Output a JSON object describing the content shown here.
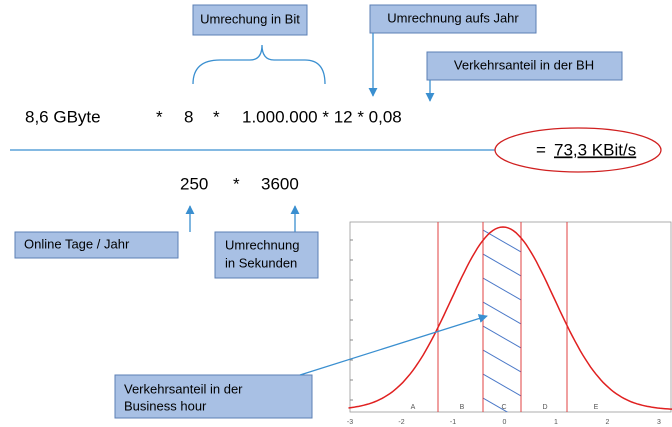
{
  "annotations": {
    "bit": "Umrechung in Bit",
    "year": "Umrechnung aufs Jahr",
    "bh": "Verkehrsanteil in der BH",
    "days": "Online Tage / Jahr",
    "seconds": [
      "Umrechnung",
      "in Sekunden"
    ],
    "business": [
      "Verkehrsanteil in der",
      "Business hour"
    ]
  },
  "formula": {
    "numerator": [
      "8,6 GByte",
      "*",
      "8",
      "*",
      "1.000.000 * 12 * 0,08"
    ],
    "denominator": [
      "250",
      "*",
      "3600"
    ],
    "result_prefix": "=",
    "result": "73,3 KBit/s"
  },
  "distribution": {
    "regions": [
      "A",
      "B",
      "C",
      "D",
      "E"
    ],
    "axis_labels": [
      "-3",
      "-2",
      "-1",
      "0",
      "1",
      "2",
      "3"
    ]
  }
}
